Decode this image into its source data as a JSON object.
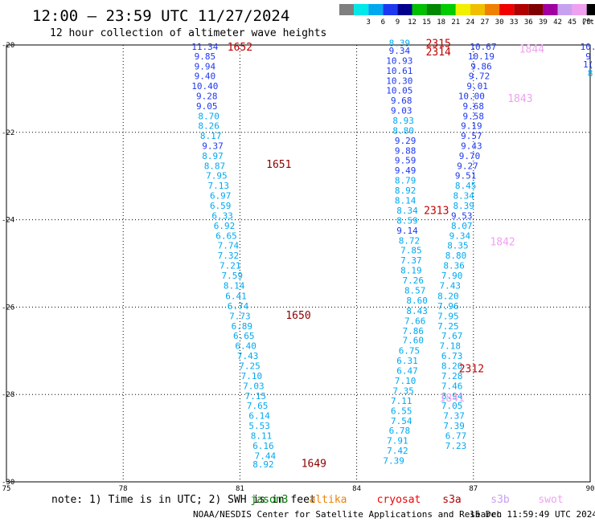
{
  "title": "12:00 — 23:59 UTC 11/27/2024",
  "subtitle": "12 hour collection of altimeter wave heights",
  "legend": {
    "unit": "(ft)",
    "bins": [
      {
        "color": "#7f7f7f",
        "label": ""
      },
      {
        "color": "#00e8e8",
        "label": "3"
      },
      {
        "color": "#00a8f0",
        "label": "6"
      },
      {
        "color": "#1e38f0",
        "label": "9"
      },
      {
        "color": "#00008c",
        "label": "12"
      },
      {
        "color": "#00c000",
        "label": "15"
      },
      {
        "color": "#008800",
        "label": "18"
      },
      {
        "color": "#00cc00",
        "label": "21"
      },
      {
        "color": "#f0f000",
        "label": "24"
      },
      {
        "color": "#f0c000",
        "label": "27"
      },
      {
        "color": "#f08000",
        "label": "30"
      },
      {
        "color": "#f00000",
        "label": "33"
      },
      {
        "color": "#b00000",
        "label": "36"
      },
      {
        "color": "#800000",
        "label": "39"
      },
      {
        "color": "#a000a0",
        "label": "42"
      },
      {
        "color": "#c8a0f0",
        "label": "45"
      },
      {
        "color": "#f0a0f0",
        "label": "70"
      },
      {
        "color": "#000000",
        "label": ""
      }
    ]
  },
  "notes": {
    "note": "note: 1) Time is in UTC; 2) SWH is in feet"
  },
  "satellites": [
    {
      "name": "jason3",
      "color": "#008000"
    },
    {
      "name": "altika",
      "color": "#f08000"
    },
    {
      "name": "cryosat",
      "color": "#f00000"
    },
    {
      "name": "s3a",
      "color": "#b00000"
    },
    {
      "name": "s3b",
      "color": "#c8a0f0"
    },
    {
      "name": "swot",
      "color": "#f0a0f0"
    }
  ],
  "footer": {
    "credit": "NOAA/NESDIS Center for Satellite Applications and Research",
    "timestamp": "15 Dec 11:59:49 UTC 2024"
  },
  "chart_data": {
    "type": "scatter",
    "x_ticks": [
      "75",
      "78",
      "81",
      "84",
      "87",
      "90"
    ],
    "y_ticks": [
      "-20",
      "-22",
      "-24",
      "-26",
      "-28",
      "-30"
    ],
    "xlim": [
      75,
      90
    ],
    "ylim": [
      -30,
      -20
    ],
    "grid": true,
    "colors": {
      "blue": "#00a8f0",
      "navy": "#1e38f0",
      "red": "#c00000",
      "darkred": "#8b0000",
      "pink": "#f0a0f0"
    },
    "points": [
      {
        "x": 80.1,
        "y": -20.04,
        "v": "11.34",
        "c": "navy"
      },
      {
        "x": 80.1,
        "y": -20.26,
        "v": "9.85",
        "c": "navy"
      },
      {
        "x": 80.1,
        "y": -20.49,
        "v": "9.94",
        "c": "navy"
      },
      {
        "x": 80.1,
        "y": -20.71,
        "v": "9.40",
        "c": "navy"
      },
      {
        "x": 80.1,
        "y": -20.94,
        "v": "10.40",
        "c": "navy"
      },
      {
        "x": 80.15,
        "y": -21.17,
        "v": "9.28",
        "c": "navy"
      },
      {
        "x": 80.15,
        "y": -21.4,
        "v": "9.05",
        "c": "navy"
      },
      {
        "x": 80.2,
        "y": -21.63,
        "v": "8.70",
        "c": "blue"
      },
      {
        "x": 80.2,
        "y": -21.85,
        "v": "8.26",
        "c": "blue"
      },
      {
        "x": 80.25,
        "y": -22.08,
        "v": "8.17",
        "c": "blue"
      },
      {
        "x": 80.3,
        "y": -22.31,
        "v": "9.37",
        "c": "navy"
      },
      {
        "x": 80.3,
        "y": -22.54,
        "v": "8.97",
        "c": "blue"
      },
      {
        "x": 80.35,
        "y": -22.77,
        "v": "8.87",
        "c": "blue"
      },
      {
        "x": 80.4,
        "y": -22.99,
        "v": "7.95",
        "c": "blue"
      },
      {
        "x": 80.45,
        "y": -23.22,
        "v": "7.13",
        "c": "blue"
      },
      {
        "x": 80.5,
        "y": -23.45,
        "v": "6.97",
        "c": "blue"
      },
      {
        "x": 80.5,
        "y": -23.68,
        "v": "6.59",
        "c": "blue"
      },
      {
        "x": 80.55,
        "y": -23.91,
        "v": "6.33",
        "c": "blue"
      },
      {
        "x": 80.6,
        "y": -24.14,
        "v": "6.92",
        "c": "blue"
      },
      {
        "x": 80.65,
        "y": -24.37,
        "v": "6.65",
        "c": "blue"
      },
      {
        "x": 80.7,
        "y": -24.59,
        "v": "7.74",
        "c": "blue"
      },
      {
        "x": 80.7,
        "y": -24.82,
        "v": "7.32",
        "c": "blue"
      },
      {
        "x": 80.75,
        "y": -25.05,
        "v": "7.21",
        "c": "blue"
      },
      {
        "x": 80.8,
        "y": -25.28,
        "v": "7.59",
        "c": "blue"
      },
      {
        "x": 80.85,
        "y": -25.51,
        "v": "8.14",
        "c": "blue"
      },
      {
        "x": 80.9,
        "y": -25.74,
        "v": "6.41",
        "c": "blue"
      },
      {
        "x": 80.95,
        "y": -25.97,
        "v": "6.74",
        "c": "blue"
      },
      {
        "x": 81.0,
        "y": -26.2,
        "v": "7.73",
        "c": "blue"
      },
      {
        "x": 81.05,
        "y": -26.43,
        "v": "6.89",
        "c": "blue"
      },
      {
        "x": 81.1,
        "y": -26.65,
        "v": "6.65",
        "c": "blue"
      },
      {
        "x": 81.15,
        "y": -26.88,
        "v": "6.40",
        "c": "blue"
      },
      {
        "x": 81.2,
        "y": -27.11,
        "v": "7.43",
        "c": "blue"
      },
      {
        "x": 81.25,
        "y": -27.34,
        "v": "7.25",
        "c": "blue"
      },
      {
        "x": 81.3,
        "y": -27.57,
        "v": "7.10",
        "c": "blue"
      },
      {
        "x": 81.35,
        "y": -27.8,
        "v": "7.03",
        "c": "blue"
      },
      {
        "x": 81.4,
        "y": -28.03,
        "v": "7.15",
        "c": "blue"
      },
      {
        "x": 81.45,
        "y": -28.25,
        "v": "7.65",
        "c": "blue"
      },
      {
        "x": 81.5,
        "y": -28.48,
        "v": "6.14",
        "c": "blue"
      },
      {
        "x": 81.5,
        "y": -28.71,
        "v": "5.53",
        "c": "blue"
      },
      {
        "x": 81.55,
        "y": -28.94,
        "v": "8.11",
        "c": "blue"
      },
      {
        "x": 81.6,
        "y": -29.17,
        "v": "6.16",
        "c": "blue"
      },
      {
        "x": 81.65,
        "y": -29.4,
        "v": "7.44",
        "c": "blue"
      },
      {
        "x": 81.6,
        "y": -29.6,
        "v": "8.92",
        "c": "blue"
      },
      {
        "x": 85.1,
        "y": -19.95,
        "v": "8.39",
        "c": "blue"
      },
      {
        "x": 85.1,
        "y": -20.13,
        "v": "9.34",
        "c": "navy"
      },
      {
        "x": 85.1,
        "y": -20.36,
        "v": "10.93",
        "c": "navy"
      },
      {
        "x": 85.1,
        "y": -20.59,
        "v": "10.61",
        "c": "navy"
      },
      {
        "x": 85.1,
        "y": -20.82,
        "v": "10.30",
        "c": "navy"
      },
      {
        "x": 85.1,
        "y": -21.04,
        "v": "10.05",
        "c": "navy"
      },
      {
        "x": 85.15,
        "y": -21.27,
        "v": "9.68",
        "c": "navy"
      },
      {
        "x": 85.15,
        "y": -21.5,
        "v": "9.03",
        "c": "navy"
      },
      {
        "x": 85.2,
        "y": -21.73,
        "v": "8.93",
        "c": "blue"
      },
      {
        "x": 85.2,
        "y": -21.96,
        "v": "8.80",
        "c": "blue"
      },
      {
        "x": 85.25,
        "y": -22.19,
        "v": "9.29",
        "c": "navy"
      },
      {
        "x": 85.25,
        "y": -22.42,
        "v": "9.88",
        "c": "navy"
      },
      {
        "x": 85.25,
        "y": -22.64,
        "v": "9.59",
        "c": "navy"
      },
      {
        "x": 85.25,
        "y": -22.87,
        "v": "9.49",
        "c": "navy"
      },
      {
        "x": 85.25,
        "y": -23.1,
        "v": "8.79",
        "c": "blue"
      },
      {
        "x": 85.25,
        "y": -23.33,
        "v": "8.92",
        "c": "blue"
      },
      {
        "x": 85.25,
        "y": -23.56,
        "v": "8.14",
        "c": "blue"
      },
      {
        "x": 85.3,
        "y": -23.79,
        "v": "8.34",
        "c": "blue"
      },
      {
        "x": 85.3,
        "y": -24.02,
        "v": "8.59",
        "c": "blue"
      },
      {
        "x": 85.3,
        "y": -24.25,
        "v": "9.14",
        "c": "navy"
      },
      {
        "x": 85.35,
        "y": -24.48,
        "v": "8.72",
        "c": "blue"
      },
      {
        "x": 85.4,
        "y": -24.7,
        "v": "7.85",
        "c": "blue"
      },
      {
        "x": 85.4,
        "y": -24.93,
        "v": "7.37",
        "c": "blue"
      },
      {
        "x": 85.4,
        "y": -25.16,
        "v": "8.19",
        "c": "blue"
      },
      {
        "x": 85.45,
        "y": -25.39,
        "v": "7.26",
        "c": "blue"
      },
      {
        "x": 85.5,
        "y": -25.62,
        "v": "8.57",
        "c": "blue"
      },
      {
        "x": 85.55,
        "y": -25.85,
        "v": "8.60",
        "c": "blue"
      },
      {
        "x": 85.55,
        "y": -26.08,
        "v": "8.43",
        "c": "blue"
      },
      {
        "x": 85.5,
        "y": -26.31,
        "v": "7.66",
        "c": "blue"
      },
      {
        "x": 85.45,
        "y": -26.54,
        "v": "7.86",
        "c": "blue"
      },
      {
        "x": 85.45,
        "y": -26.76,
        "v": "7.60",
        "c": "blue"
      },
      {
        "x": 85.35,
        "y": -26.99,
        "v": "6.75",
        "c": "blue"
      },
      {
        "x": 85.3,
        "y": -27.22,
        "v": "6.31",
        "c": "blue"
      },
      {
        "x": 85.3,
        "y": -27.45,
        "v": "6.47",
        "c": "blue"
      },
      {
        "x": 85.25,
        "y": -27.68,
        "v": "7.10",
        "c": "blue"
      },
      {
        "x": 85.2,
        "y": -27.91,
        "v": "7.35",
        "c": "blue"
      },
      {
        "x": 85.15,
        "y": -28.14,
        "v": "7.11",
        "c": "blue"
      },
      {
        "x": 85.15,
        "y": -28.37,
        "v": "6.55",
        "c": "blue"
      },
      {
        "x": 85.15,
        "y": -28.6,
        "v": "7.54",
        "c": "blue"
      },
      {
        "x": 85.1,
        "y": -28.82,
        "v": "6.78",
        "c": "blue"
      },
      {
        "x": 85.05,
        "y": -29.05,
        "v": "7.91",
        "c": "blue"
      },
      {
        "x": 85.05,
        "y": -29.28,
        "v": "7.42",
        "c": "blue"
      },
      {
        "x": 84.95,
        "y": -29.51,
        "v": "7.39",
        "c": "blue"
      },
      {
        "x": 87.25,
        "y": -20.04,
        "v": "10.67",
        "c": "navy"
      },
      {
        "x": 87.2,
        "y": -20.26,
        "v": "10.19",
        "c": "navy"
      },
      {
        "x": 87.2,
        "y": -20.49,
        "v": "9.86",
        "c": "navy"
      },
      {
        "x": 87.15,
        "y": -20.71,
        "v": "9.72",
        "c": "navy"
      },
      {
        "x": 87.1,
        "y": -20.94,
        "v": "9.01",
        "c": "navy"
      },
      {
        "x": 86.95,
        "y": -21.17,
        "v": "10.00",
        "c": "navy"
      },
      {
        "x": 87.0,
        "y": -21.4,
        "v": "9.68",
        "c": "navy"
      },
      {
        "x": 87.0,
        "y": -21.63,
        "v": "9.58",
        "c": "navy"
      },
      {
        "x": 86.95,
        "y": -21.85,
        "v": "9.19",
        "c": "navy"
      },
      {
        "x": 86.95,
        "y": -22.08,
        "v": "9.57",
        "c": "navy"
      },
      {
        "x": 86.95,
        "y": -22.31,
        "v": "9.43",
        "c": "navy"
      },
      {
        "x": 86.9,
        "y": -22.54,
        "v": "9.70",
        "c": "navy"
      },
      {
        "x": 86.85,
        "y": -22.77,
        "v": "9.27",
        "c": "navy"
      },
      {
        "x": 86.8,
        "y": -22.99,
        "v": "9.51",
        "c": "navy"
      },
      {
        "x": 86.8,
        "y": -23.22,
        "v": "8.45",
        "c": "blue"
      },
      {
        "x": 86.75,
        "y": -23.45,
        "v": "8.34",
        "c": "blue"
      },
      {
        "x": 86.75,
        "y": -23.68,
        "v": "8.39",
        "c": "blue"
      },
      {
        "x": 86.7,
        "y": -23.91,
        "v": "9.53",
        "c": "navy"
      },
      {
        "x": 86.7,
        "y": -24.14,
        "v": "8.07",
        "c": "blue"
      },
      {
        "x": 86.65,
        "y": -24.37,
        "v": "9.34",
        "c": "blue"
      },
      {
        "x": 86.6,
        "y": -24.59,
        "v": "8.35",
        "c": "blue"
      },
      {
        "x": 86.55,
        "y": -24.82,
        "v": "8.80",
        "c": "blue"
      },
      {
        "x": 86.5,
        "y": -25.05,
        "v": "8.36",
        "c": "blue"
      },
      {
        "x": 86.45,
        "y": -25.28,
        "v": "7.90",
        "c": "blue"
      },
      {
        "x": 86.4,
        "y": -25.51,
        "v": "7.43",
        "c": "blue"
      },
      {
        "x": 86.35,
        "y": -25.74,
        "v": "8.20",
        "c": "blue"
      },
      {
        "x": 86.35,
        "y": -25.97,
        "v": "7.96",
        "c": "blue"
      },
      {
        "x": 86.35,
        "y": -26.2,
        "v": "7.95",
        "c": "blue"
      },
      {
        "x": 86.35,
        "y": -26.43,
        "v": "7.25",
        "c": "blue"
      },
      {
        "x": 86.45,
        "y": -26.65,
        "v": "7.67",
        "c": "blue"
      },
      {
        "x": 86.4,
        "y": -26.88,
        "v": "7.18",
        "c": "blue"
      },
      {
        "x": 86.45,
        "y": -27.11,
        "v": "6.73",
        "c": "blue"
      },
      {
        "x": 86.45,
        "y": -27.34,
        "v": "8.20",
        "c": "blue"
      },
      {
        "x": 86.45,
        "y": -27.57,
        "v": "7.28",
        "c": "blue"
      },
      {
        "x": 86.45,
        "y": -27.8,
        "v": "7.46",
        "c": "blue"
      },
      {
        "x": 86.45,
        "y": -28.03,
        "v": "8.94",
        "c": "blue"
      },
      {
        "x": 86.45,
        "y": -28.25,
        "v": "7.05",
        "c": "blue"
      },
      {
        "x": 86.5,
        "y": -28.48,
        "v": "7.37",
        "c": "blue"
      },
      {
        "x": 86.5,
        "y": -28.71,
        "v": "7.39",
        "c": "blue"
      },
      {
        "x": 86.55,
        "y": -28.94,
        "v": "6.77",
        "c": "blue"
      },
      {
        "x": 86.55,
        "y": -29.17,
        "v": "7.23",
        "c": "blue"
      },
      {
        "x": 89.95,
        "y": -20.04,
        "v": "10.",
        "c": "navy"
      },
      {
        "x": 89.95,
        "y": -20.26,
        "v": "9",
        "c": "navy"
      },
      {
        "x": 89.95,
        "y": -20.44,
        "v": "1(",
        "c": "navy"
      },
      {
        "x": 90.0,
        "y": -20.64,
        "v": "8",
        "c": "blue"
      }
    ],
    "time_labels": [
      {
        "x": 81.0,
        "y": -20.04,
        "t": "1652",
        "c": "red"
      },
      {
        "x": 82.0,
        "y": -22.72,
        "t": "1651",
        "c": "darkred"
      },
      {
        "x": 82.5,
        "y": -26.18,
        "t": "1650",
        "c": "darkred"
      },
      {
        "x": 82.9,
        "y": -29.57,
        "t": "1649",
        "c": "darkred"
      },
      {
        "x": 86.1,
        "y": -19.95,
        "t": "2315",
        "c": "red"
      },
      {
        "x": 86.1,
        "y": -20.15,
        "t": "2314",
        "c": "red"
      },
      {
        "x": 86.05,
        "y": -23.78,
        "t": "2313",
        "c": "red"
      },
      {
        "x": 86.95,
        "y": -27.4,
        "t": "2312",
        "c": "red"
      },
      {
        "x": 88.5,
        "y": -20.08,
        "t": "1844",
        "c": "pink"
      },
      {
        "x": 88.2,
        "y": -21.21,
        "t": "1843",
        "c": "pink"
      },
      {
        "x": 87.75,
        "y": -24.49,
        "t": "1842",
        "c": "pink"
      },
      {
        "x": 86.45,
        "y": -28.07,
        "t": "1841",
        "c": "pink"
      }
    ]
  }
}
